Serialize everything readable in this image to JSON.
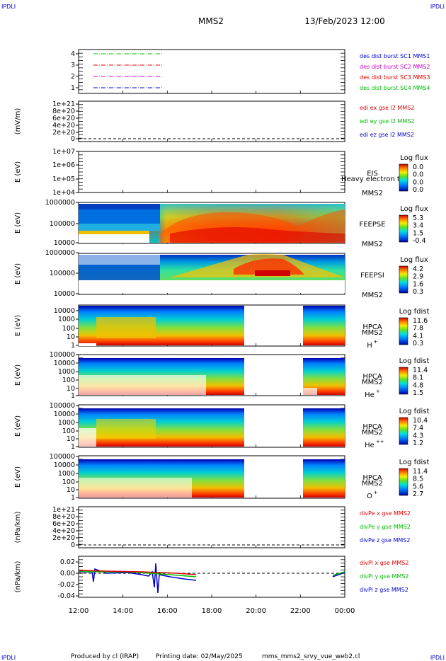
{
  "header": {
    "corner_left_top": "IPDLI",
    "corner_right_top": "IPDLI",
    "spacecraft": "MMS2",
    "datetime": "13/Feb/2023 12:00",
    "corner_left_bottom": "IPDLI",
    "corner_right_bottom": "IPDLI"
  },
  "footer": {
    "produced_by": "Produced by  cl (IRAP)",
    "printing_date": "Printing date: 02/May/2025",
    "script_name": "mms_mms2_srvy_vue_web2.cl"
  },
  "colors": {
    "red": "#e00000",
    "green": "#00bb00",
    "blue": "#0000cc",
    "magenta": "#cc00cc",
    "series_blue": "#1010aa"
  },
  "chart_data": [
    {
      "id": "burst",
      "type": "line",
      "yticks": [
        "4",
        "3",
        "2",
        "1"
      ],
      "legend": [
        {
          "label": "des dist burst SC1 MMS1",
          "color": "#0000cc"
        },
        {
          "label": "des dist burst SC2 MMS2",
          "color": "#cc00cc"
        },
        {
          "label": "des dist burst SC3 MMS3",
          "color": "#e00000"
        },
        {
          "label": "des dist burst SC4 MMS4",
          "color": "#00bb00"
        }
      ],
      "series": [
        {
          "y": 4,
          "x_start": "12:40",
          "x_end": "15:50",
          "color": "#00bb00"
        },
        {
          "y": 3,
          "x_start": "12:40",
          "x_end": "15:50",
          "color": "#e00000"
        },
        {
          "y": 2,
          "x_start": "12:40",
          "x_end": "15:50",
          "color": "#cc00cc"
        },
        {
          "y": 1,
          "x_start": "12:40",
          "x_end": "15:50",
          "color": "#0000cc"
        }
      ]
    },
    {
      "id": "edi",
      "type": "line",
      "ylabel": "(mV/m)",
      "yticks": [
        "1e+21",
        "8e+20",
        "6e+20",
        "4e+20",
        "2e+20",
        "0"
      ],
      "legend": [
        {
          "label": "edi ex gse l2 MMS2",
          "color": "#e00000"
        },
        {
          "label": "edi ey gse l2 MMS2",
          "color": "#00bb00"
        },
        {
          "label": "edi ez gse l2 MMS2",
          "color": "#0000cc"
        }
      ]
    },
    {
      "id": "eis",
      "type": "heatmap",
      "ylabel": "E (eV)",
      "yticks": [
        "1e+07",
        "1e+06",
        "1e+05",
        "1e+04"
      ],
      "instrument": "EIS",
      "species": "Heavy electron to",
      "spacecraft": "MMS2",
      "colorbar_title": "Log flux",
      "colorbar_ticks": [
        "0.0",
        "0.0",
        "0.0",
        "0.0"
      ]
    },
    {
      "id": "feepse",
      "type": "heatmap",
      "ylabel": "E (eV)",
      "yticks": [
        "1000000",
        "100000",
        "10000"
      ],
      "instrument": "FEEPSE",
      "spacecraft": "MMS2",
      "colorbar_title": "Log flux",
      "colorbar_ticks": [
        "5.3",
        "3.4",
        "1.5",
        "-0.4"
      ]
    },
    {
      "id": "feepsi",
      "type": "heatmap",
      "ylabel": "E (eV)",
      "yticks": [
        "1000000",
        "100000",
        "10000"
      ],
      "instrument": "FEEPSI",
      "spacecraft": "MMS2",
      "colorbar_title": "Log flux",
      "colorbar_ticks": [
        "4.2",
        "2.9",
        "1.6",
        "0.3"
      ]
    },
    {
      "id": "hpca_h",
      "type": "heatmap",
      "ylabel": "E (eV)",
      "yticks": [
        "10000",
        "1000",
        "100",
        "10",
        "1"
      ],
      "instrument": "HPCA",
      "spacecraft": "MMS2",
      "species": "H",
      "species_sup": "+",
      "colorbar_title": "Log fdist",
      "colorbar_ticks": [
        "11.6",
        "7.8",
        "4.1",
        "0.3"
      ]
    },
    {
      "id": "hpca_he",
      "type": "heatmap",
      "ylabel": "E (eV)",
      "yticks": [
        "100000",
        "10000",
        "1000",
        "100",
        "10",
        "1"
      ],
      "instrument": "HPCA",
      "spacecraft": "MMS2",
      "species": "He",
      "species_sup": "+",
      "colorbar_title": "Log fdist",
      "colorbar_ticks": [
        "11.4",
        "8.1",
        "4.8",
        "1.5"
      ]
    },
    {
      "id": "hpca_hepp",
      "type": "heatmap",
      "ylabel": "E (eV)",
      "yticks": [
        "100000",
        "10000",
        "1000",
        "100",
        "10",
        "1"
      ],
      "instrument": "HPCA",
      "spacecraft": "MMS2",
      "species": "He",
      "species_sup": "++",
      "colorbar_title": "Log fdist",
      "colorbar_ticks": [
        "10.4",
        "7.4",
        "4.3",
        "1.2"
      ]
    },
    {
      "id": "hpca_o",
      "type": "heatmap",
      "ylabel": "E (eV)",
      "yticks": [
        "100000",
        "10000",
        "1000",
        "100",
        "10",
        "1"
      ],
      "instrument": "HPCA",
      "spacecraft": "MMS2",
      "species": "O",
      "species_sup": "+",
      "colorbar_title": "Log fdist",
      "colorbar_ticks": [
        "11.4",
        "8.5",
        "5.6",
        "2.7"
      ]
    },
    {
      "id": "divpe",
      "type": "line",
      "ylabel": "(nPa/km)",
      "yticks": [
        "1e+21",
        "8e+20",
        "6e+20",
        "4e+20",
        "2e+20",
        "0"
      ],
      "legend": [
        {
          "label": "divPe x gse MMS2",
          "color": "#e00000"
        },
        {
          "label": "divPe y gse MMS2",
          "color": "#00bb00"
        },
        {
          "label": "divPe z gse MMS2",
          "color": "#0000cc"
        }
      ]
    },
    {
      "id": "divpi",
      "type": "line",
      "ylabel": "(nPa/km)",
      "yticks": [
        "0.02",
        "0.00",
        "-0.02",
        "-0.04"
      ],
      "ylim": [
        -0.045,
        0.03
      ],
      "legend": [
        {
          "label": "divPi x gse MMS2",
          "color": "#e00000"
        },
        {
          "label": "divPi y gse MMS2",
          "color": "#00bb00"
        },
        {
          "label": "divPi z gse MMS2",
          "color": "#0000cc"
        }
      ]
    }
  ],
  "time_axis": {
    "ticks": [
      "12:00",
      "14:00",
      "16:00",
      "18:00",
      "20:00",
      "22:00",
      "00:00"
    ]
  }
}
